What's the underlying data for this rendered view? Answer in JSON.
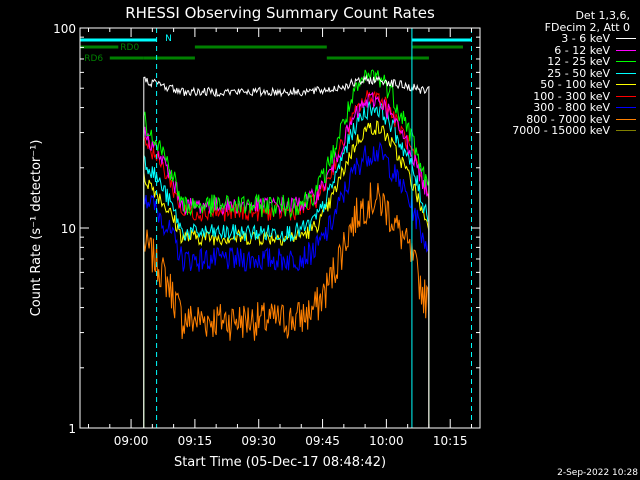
{
  "chart_data": {
    "type": "line",
    "title": "RHESSI Observing Summary Count Rates",
    "xlabel": "Start Time (05-Dec-17 08:48:42)",
    "ylabel": "Count Rate (s⁻¹ detector⁻¹)",
    "yscale": "log",
    "ylim": [
      1,
      100
    ],
    "xlim_minutes": [
      -12,
      82
    ],
    "x_ticks": [
      {
        "m": 0,
        "label": "09:00"
      },
      {
        "m": 15,
        "label": "09:15"
      },
      {
        "m": 30,
        "label": "09:30"
      },
      {
        "m": 45,
        "label": "09:45"
      },
      {
        "m": 60,
        "label": "10:00"
      },
      {
        "m": 75,
        "label": "10:15"
      }
    ],
    "y_ticks": [
      {
        "v": 1,
        "label": "1"
      },
      {
        "v": 10,
        "label": "10"
      },
      {
        "v": 100,
        "label": "100"
      }
    ],
    "legend_header": [
      "Det 1,3,6,",
      "FDecim 2, Att 0"
    ],
    "series": [
      {
        "name": "3 - 6 keV",
        "color": "#ffffff",
        "edge": 55,
        "mid": 48,
        "peak": 55,
        "noise": 0.05
      },
      {
        "name": "6 - 12 keV",
        "color": "#ff00ff",
        "edge": 30,
        "mid": 13,
        "peak": 44,
        "noise": 0.1
      },
      {
        "name": "12 - 25 keV",
        "color": "#00ff00",
        "edge": 35,
        "mid": 13,
        "peak": 58,
        "noise": 0.13
      },
      {
        "name": "25 - 50 keV",
        "color": "#00ffff",
        "edge": 22,
        "mid": 9.5,
        "peak": 40,
        "noise": 0.1
      },
      {
        "name": "50 - 100 keV",
        "color": "#ffff00",
        "edge": 18,
        "mid": 9,
        "peak": 32,
        "noise": 0.09
      },
      {
        "name": "100 - 300 keV",
        "color": "#ff0000",
        "edge": 28,
        "mid": 12,
        "peak": 46,
        "noise": 0.1
      },
      {
        "name": "300 - 800 keV",
        "color": "#0000ff",
        "edge": 15,
        "mid": 7,
        "peak": 24,
        "noise": 0.14
      },
      {
        "name": "800 - 7000 keV",
        "color": "#ff8000",
        "edge": 8.5,
        "mid": 3.5,
        "peak": 14,
        "noise": 0.22
      },
      {
        "name": "7000 - 15000 keV",
        "color": "#808000",
        "edge": 0,
        "mid": 0,
        "peak": 0,
        "noise": 0
      }
    ],
    "data_start_m": 3,
    "data_end_m": 70,
    "flags": [
      {
        "label": "N",
        "color": "#00ffff",
        "row": 1,
        "segments": [
          [
            -12,
            6
          ],
          [
            66,
            80
          ]
        ]
      },
      {
        "label": "RD0",
        "color": "#008000",
        "row": 2,
        "segments": [
          [
            -12,
            -3
          ],
          [
            15,
            46
          ],
          [
            66,
            78
          ]
        ]
      },
      {
        "label": "RD6",
        "color": "#008000",
        "row": 3,
        "segments": [
          [
            -5,
            3
          ],
          [
            3,
            15
          ],
          [
            46,
            70
          ]
        ]
      }
    ],
    "vlines": [
      {
        "m": -12,
        "color": "#00ffff",
        "style": "solid"
      },
      {
        "m": 6,
        "color": "#00ffff",
        "style": "dashed"
      },
      {
        "m": 66,
        "color": "#00ffff",
        "style": "solid"
      },
      {
        "m": 80,
        "color": "#00ffff",
        "style": "dashed"
      }
    ]
  },
  "footer": {
    "date": "2-Sep-2022 10:28"
  }
}
